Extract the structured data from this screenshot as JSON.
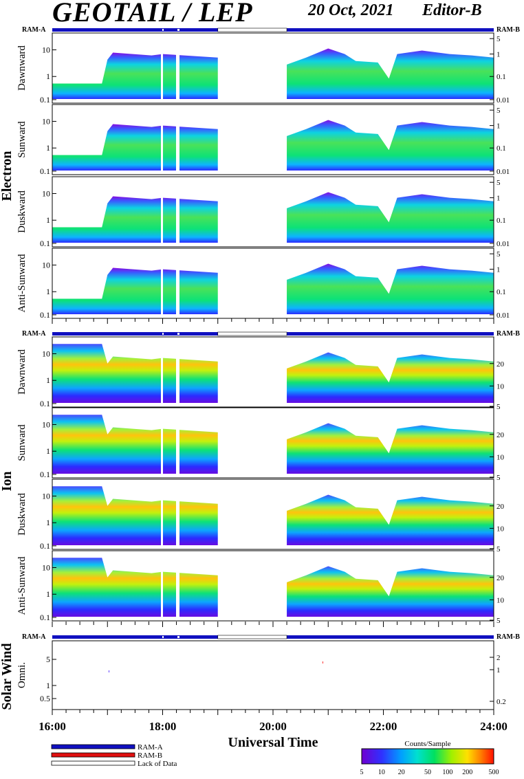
{
  "header": {
    "title": "GEOTAIL / LEP",
    "date": "20 Oct, 2021",
    "editor": "Editor-B"
  },
  "status_bar": {
    "left_label": "RAM-A",
    "right_label": "RAM-B",
    "colors": {
      "ram_a": "#1010c0",
      "ram_b": "#e01010",
      "lack": "#ffffff"
    }
  },
  "groups": [
    {
      "name": "Electron",
      "panels": [
        "Dawnward",
        "Sunward",
        "Duskward",
        "Anti-Sunward"
      ],
      "left_ticks": [
        "10",
        "1",
        "0.1"
      ],
      "right_ticks": [
        "5",
        "1",
        "0.1",
        "0.01"
      ]
    },
    {
      "name": "Ion",
      "panels": [
        "Dawnward",
        "Sunward",
        "Duskward",
        "Anti-Sunward"
      ],
      "left_ticks": [
        "10",
        "1",
        "0.1"
      ],
      "right_ticks": [
        "20",
        "10",
        "5"
      ]
    },
    {
      "name": "Solar Wind",
      "panels": [
        "Omni."
      ],
      "left_ticks": [
        "5",
        "1",
        "0.5"
      ],
      "right_ticks": [
        "2",
        "1",
        "0.2"
      ]
    }
  ],
  "x_axis": {
    "label": "Universal Time",
    "ticks": [
      "16:00",
      "18:00",
      "20:00",
      "22:00",
      "24:00"
    ]
  },
  "legend": {
    "items": [
      {
        "label": "RAM-A",
        "color": "#1010c0"
      },
      {
        "label": "RAM-B",
        "color": "#e01010"
      },
      {
        "label": "Lack of Data",
        "color": "#ffffff"
      }
    ]
  },
  "colorbar": {
    "title": "Counts/Sample",
    "ticks": [
      "5",
      "10",
      "20",
      "50",
      "100",
      "200",
      "500"
    ]
  },
  "chart_data": {
    "type": "heatmap",
    "title": "GEOTAIL / LEP",
    "xlabel": "Universal Time",
    "x_range_hours": [
      16,
      24
    ],
    "data_gaps_ut": [
      [
        19.0,
        20.25
      ]
    ],
    "colorbar_range": [
      5,
      500
    ]
  }
}
